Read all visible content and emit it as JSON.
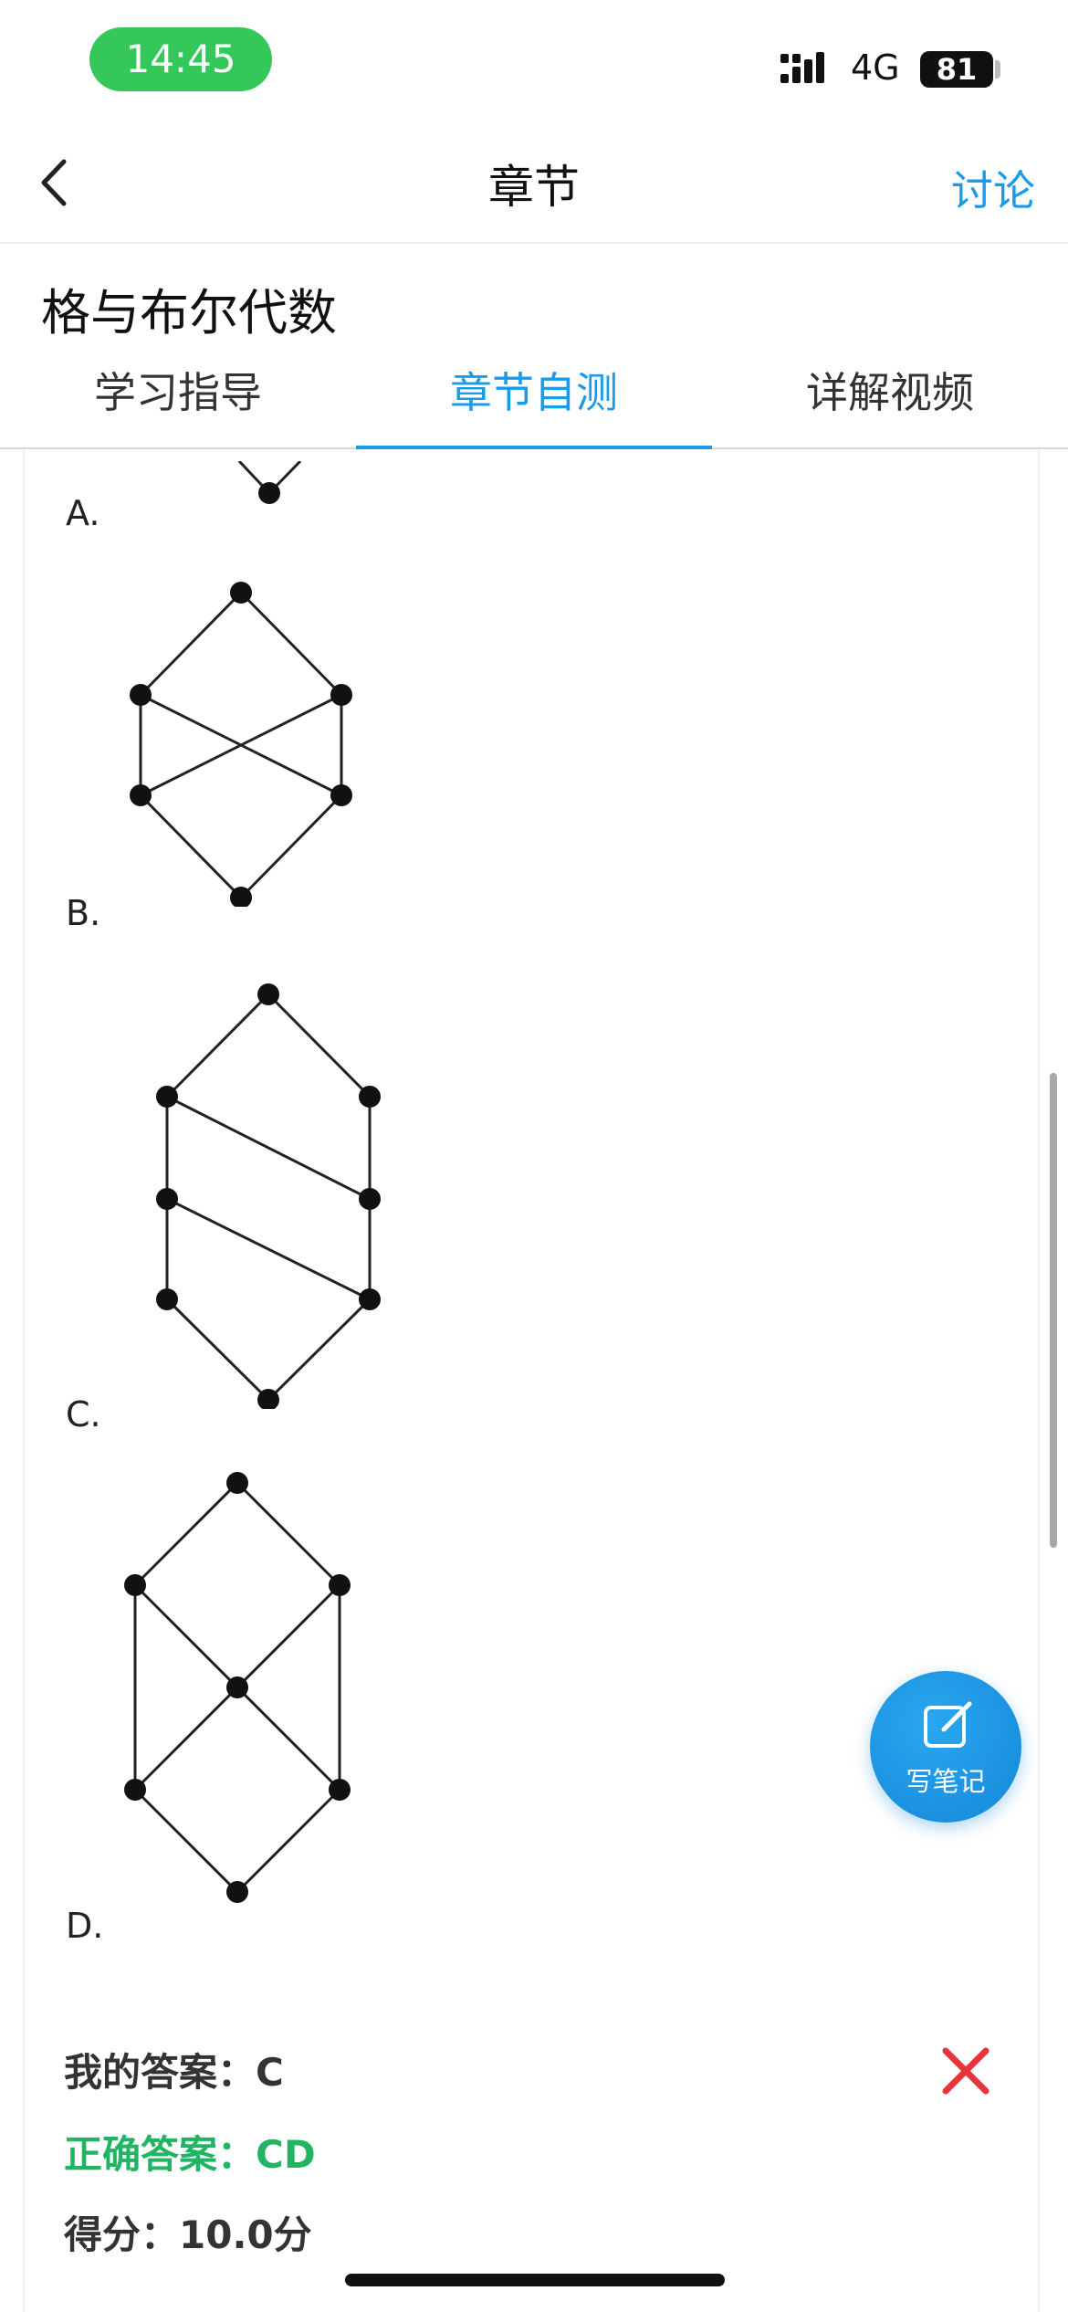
{
  "status_bar": {
    "time": "14:45",
    "network": "4G",
    "battery": "81"
  },
  "nav": {
    "title": "章节",
    "discuss": "讨论"
  },
  "chapter_title": "格与布尔代数",
  "tabs": [
    {
      "label": "学习指导"
    },
    {
      "label": "章节自测"
    },
    {
      "label": "详解视频"
    }
  ],
  "options": [
    {
      "label": "A."
    },
    {
      "label": "B."
    },
    {
      "label": "C."
    },
    {
      "label": "D."
    }
  ],
  "note_button": {
    "label": "写笔记"
  },
  "answer": {
    "mine": "我的答案：C",
    "correct": "正确答案：CD",
    "score": "得分：10.0分"
  },
  "colors": {
    "accent": "#1a9bea",
    "correct": "#20b463",
    "wrong": "#e8353b",
    "status_green": "#34c759"
  }
}
